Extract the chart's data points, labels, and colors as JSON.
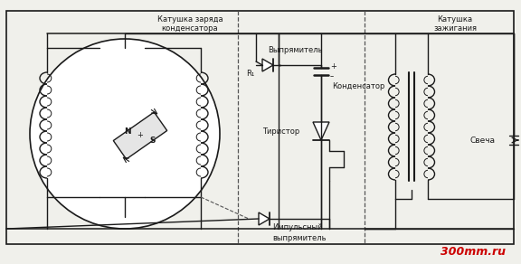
{
  "bg_color": "#f0f0eb",
  "line_color": "#1a1a1a",
  "red_text_color": "#cc0000",
  "labels": {
    "coil_charge": "Катушка заряда",
    "coil_charge2": "конденсатора",
    "rectifier": "Выпрямитель",
    "r1": "R₁",
    "capacitor": "Конденсатор",
    "thyristor": "Тиристор",
    "coil_ignition": "Катушка",
    "coil_ignition2": "зажигания",
    "spark": "Свеча",
    "pulse_rect": "Импульсный",
    "pulse_rect2": "выпрямитель",
    "watermark": "300mm.ru",
    "N": "N",
    "S": "S",
    "plus": "+"
  }
}
